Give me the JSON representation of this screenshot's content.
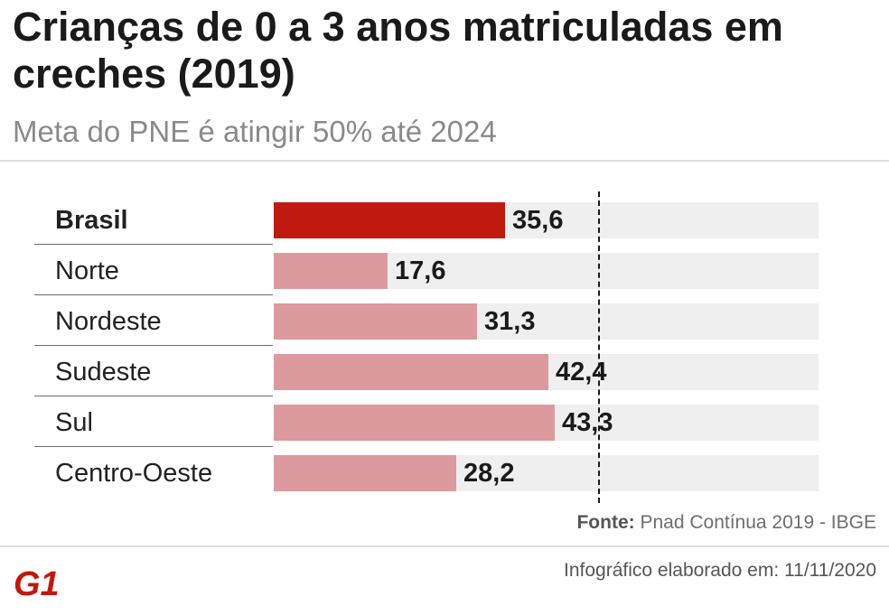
{
  "title": "Crianças de 0 a 3 anos matriculadas em creches (2019)",
  "subtitle": "Meta do PNE é atingir 50% até 2024",
  "chart_data": {
    "type": "bar",
    "orientation": "horizontal",
    "categories": [
      "Brasil",
      "Norte",
      "Nordeste",
      "Sudeste",
      "Sul",
      "Centro-Oeste"
    ],
    "values": [
      35.6,
      17.6,
      31.3,
      42.4,
      43.3,
      28.2
    ],
    "value_labels": [
      "35,6",
      "17,6",
      "31,3",
      "42,4",
      "43,3",
      "28,2"
    ],
    "highlight_index": 0,
    "xlim": [
      0,
      84
    ],
    "reference_line": 50,
    "colors": {
      "highlight": "#c0190f",
      "bar": "#dc9a9e",
      "track": "#efefef"
    }
  },
  "footer": {
    "source_label": "Fonte:",
    "source_text": "Pnad Contínua 2019 - IBGE",
    "credit": "Infográfico elaborado em: 11/11/2020",
    "logo": "G1"
  }
}
